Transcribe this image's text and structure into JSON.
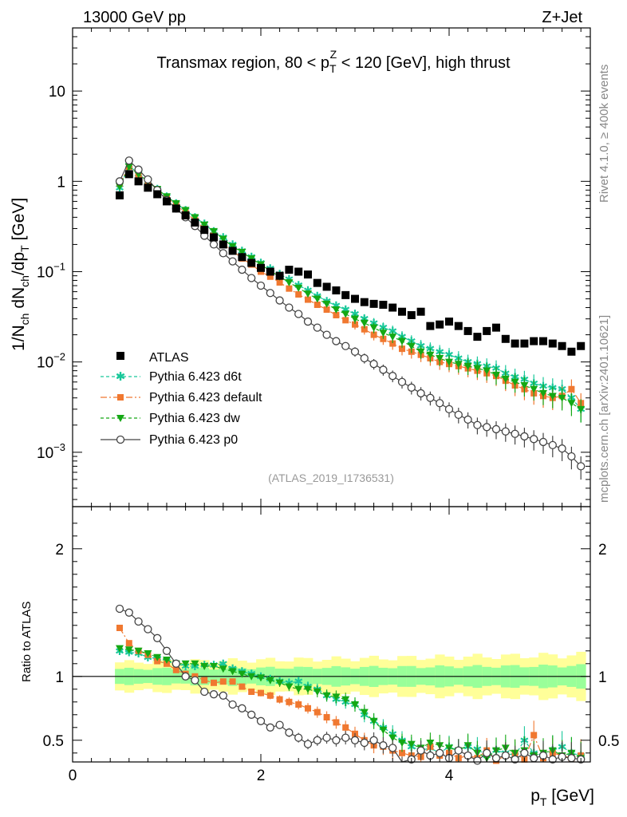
{
  "header": {
    "left": "13000 GeV pp",
    "right": "Z+Jet"
  },
  "side_text": {
    "top": "Rivet 4.1.0, ≥ 400k events",
    "bottom": "mcplots.cern.ch [arXiv:2401.10621]"
  },
  "colors": {
    "atlas": "#000000",
    "d6t": "#19c89a",
    "default": "#f07830",
    "dw": "#14a814",
    "p0": "#444444",
    "band_inner": "#99ff99",
    "band_outer": "#ffff99"
  },
  "chart_data": [
    {
      "type": "scatter",
      "title": "Transmax region, 80 < p_T^Z < 120 [GeV], high thrust",
      "title_parts": {
        "a": "Transmax region, 80 < p",
        "sub": "T",
        "sup": "Z",
        "b": " < 120 [GeV], high thrust"
      },
      "ylabel": "1/N_ch dN_ch/dp_T [GeV]",
      "ylabel_parts": {
        "a": "1/N",
        "s1": "ch",
        "b": " dN",
        "s2": "ch",
        "c": "/dp",
        "s3": "T",
        "d": " [GeV]"
      },
      "yscale": "log",
      "ylim": [
        0.00025,
        50
      ],
      "xlim": [
        0,
        5.5
      ],
      "ytick_labels": [
        {
          "value": 10,
          "base": "10",
          "exp": ""
        },
        {
          "value": 1,
          "base": "1",
          "exp": ""
        },
        {
          "value": 0.1,
          "base": "10",
          "exp": "−1"
        },
        {
          "value": 0.01,
          "base": "10",
          "exp": "−2"
        },
        {
          "value": 0.001,
          "base": "10",
          "exp": "−3"
        }
      ],
      "watermark": "(ATLAS_2019_I1736531)",
      "legend": [
        "ATLAS",
        "Pythia 6.423 d6t",
        "Pythia 6.423 default",
        "Pythia 6.423 dw",
        "Pythia 6.423 p0"
      ],
      "x": [
        0.5,
        0.6,
        0.7,
        0.8,
        0.9,
        1.0,
        1.1,
        1.2,
        1.3,
        1.4,
        1.5,
        1.6,
        1.7,
        1.8,
        1.9,
        2.0,
        2.1,
        2.2,
        2.3,
        2.4,
        2.5,
        2.6,
        2.7,
        2.8,
        2.9,
        3.0,
        3.1,
        3.2,
        3.3,
        3.4,
        3.5,
        3.6,
        3.7,
        3.8,
        3.9,
        4.0,
        4.1,
        4.2,
        4.3,
        4.4,
        4.5,
        4.6,
        4.7,
        4.8,
        4.9,
        5.0,
        5.1,
        5.2,
        5.3,
        5.4
      ],
      "series": [
        {
          "name": "ATLAS",
          "values": [
            0.7,
            1.2,
            1.0,
            0.85,
            0.72,
            0.6,
            0.5,
            0.42,
            0.35,
            0.29,
            0.24,
            0.2,
            0.17,
            0.145,
            0.125,
            0.11,
            0.1,
            0.09,
            0.105,
            0.1,
            0.093,
            0.075,
            0.068,
            0.062,
            0.055,
            0.05,
            0.046,
            0.044,
            0.043,
            0.04,
            0.036,
            0.033,
            0.036,
            0.025,
            0.026,
            0.028,
            0.025,
            0.022,
            0.019,
            0.022,
            0.024,
            0.018,
            0.016,
            0.016,
            0.017,
            0.017,
            0.016,
            0.015,
            0.013,
            0.015
          ]
        },
        {
          "name": "Pythia 6.423 d6t",
          "values": [
            0.85,
            1.5,
            1.2,
            1.0,
            0.82,
            0.68,
            0.57,
            0.48,
            0.4,
            0.34,
            0.28,
            0.24,
            0.2,
            0.17,
            0.145,
            0.125,
            0.108,
            0.094,
            0.082,
            0.071,
            0.062,
            0.054,
            0.047,
            0.042,
            0.038,
            0.034,
            0.03,
            0.027,
            0.024,
            0.022,
            0.019,
            0.017,
            0.015,
            0.014,
            0.013,
            0.012,
            0.011,
            0.01,
            0.0095,
            0.009,
            0.0085,
            0.0075,
            0.0068,
            0.0064,
            0.0058,
            0.0054,
            0.0052,
            0.005,
            0.004,
            0.003
          ]
        },
        {
          "name": "Pythia 6.423 default",
          "values": [
            0.95,
            1.45,
            1.2,
            0.98,
            0.8,
            0.66,
            0.55,
            0.45,
            0.37,
            0.3,
            0.25,
            0.2,
            0.17,
            0.14,
            0.12,
            0.1,
            0.088,
            0.076,
            0.065,
            0.056,
            0.049,
            0.043,
            0.038,
            0.033,
            0.029,
            0.026,
            0.023,
            0.02,
            0.018,
            0.016,
            0.014,
            0.013,
            0.012,
            0.011,
            0.01,
            0.0095,
            0.009,
            0.0085,
            0.008,
            0.0075,
            0.007,
            0.0062,
            0.0055,
            0.005,
            0.0045,
            0.0042,
            0.004,
            0.0042,
            0.005,
            0.0035
          ]
        },
        {
          "name": "Pythia 6.423 dw",
          "values": [
            0.88,
            1.45,
            1.2,
            1.0,
            0.82,
            0.68,
            0.57,
            0.48,
            0.4,
            0.33,
            0.28,
            0.23,
            0.19,
            0.165,
            0.14,
            0.12,
            0.102,
            0.088,
            0.076,
            0.066,
            0.057,
            0.05,
            0.044,
            0.038,
            0.034,
            0.03,
            0.027,
            0.024,
            0.021,
            0.019,
            0.017,
            0.015,
            0.013,
            0.012,
            0.011,
            0.01,
            0.0095,
            0.009,
            0.0085,
            0.008,
            0.0072,
            0.0065,
            0.006,
            0.0055,
            0.005,
            0.0045,
            0.0042,
            0.004,
            0.0035,
            0.003
          ]
        },
        {
          "name": "Pythia 6.423 p0",
          "values": [
            1.0,
            1.7,
            1.35,
            1.05,
            0.8,
            0.62,
            0.5,
            0.4,
            0.32,
            0.25,
            0.2,
            0.16,
            0.13,
            0.105,
            0.085,
            0.07,
            0.058,
            0.048,
            0.04,
            0.034,
            0.028,
            0.024,
            0.02,
            0.017,
            0.015,
            0.013,
            0.011,
            0.0095,
            0.0082,
            0.007,
            0.006,
            0.0052,
            0.0045,
            0.004,
            0.0035,
            0.003,
            0.0026,
            0.0023,
            0.002,
            0.0019,
            0.0018,
            0.0017,
            0.0016,
            0.0015,
            0.0014,
            0.0013,
            0.0012,
            0.0011,
            0.0009,
            0.0007
          ]
        }
      ]
    },
    {
      "type": "scatter",
      "ylabel": "Ratio to ATLAS",
      "xlabel": "p_T [GeV]",
      "xlabel_parts": {
        "a": "p",
        "sub": "T",
        "b": " [GeV]"
      },
      "xlim": [
        0,
        5.5
      ],
      "ylim": [
        0.33,
        2.33
      ],
      "xtick_labels": [
        "0",
        "2",
        "4"
      ],
      "xticks": [
        0,
        2,
        4
      ],
      "ytick_labels": [
        "0.5",
        "1",
        "2"
      ],
      "yticks": [
        0.5,
        1,
        2
      ],
      "band_inner_halfwidth": 0.07,
      "band_outer_halfwidth": 0.13,
      "x": [
        0.5,
        0.6,
        0.7,
        0.8,
        0.9,
        1.0,
        1.1,
        1.2,
        1.3,
        1.4,
        1.5,
        1.6,
        1.7,
        1.8,
        1.9,
        2.0,
        2.1,
        2.2,
        2.3,
        2.4,
        2.5,
        2.6,
        2.7,
        2.8,
        2.9,
        3.0,
        3.1,
        3.2,
        3.3,
        3.4,
        3.5,
        3.6,
        3.7,
        3.8,
        3.9,
        4.0,
        4.1,
        4.2,
        4.3,
        4.4,
        4.5,
        4.6,
        4.7,
        4.8,
        4.9,
        5.0,
        5.1,
        5.2,
        5.3,
        5.4
      ],
      "series": [
        {
          "name": "Pythia 6.423 d6t",
          "values": [
            1.2,
            1.19,
            1.18,
            1.15,
            1.14,
            1.12,
            1.1,
            1.08,
            1.08,
            1.09,
            1.09,
            1.1,
            1.06,
            1.04,
            1.02,
            1.0,
            0.98,
            0.96,
            0.95,
            0.96,
            0.92,
            0.9,
            0.85,
            0.82,
            0.8,
            0.78,
            0.7,
            0.65,
            0.6,
            0.55,
            0.5,
            0.45,
            0.42,
            0.44,
            0.4,
            0.45,
            0.42,
            0.45,
            0.43,
            0.38,
            0.42,
            0.4,
            0.38,
            0.5,
            0.4,
            0.38,
            0.42,
            0.45,
            0.4,
            0.38
          ]
        },
        {
          "name": "Pythia 6.423 default",
          "values": [
            1.38,
            1.26,
            1.2,
            1.17,
            1.12,
            1.1,
            1.05,
            1.02,
            1.0,
            0.97,
            0.95,
            0.96,
            0.96,
            0.92,
            0.88,
            0.87,
            0.85,
            0.82,
            0.8,
            0.78,
            0.75,
            0.72,
            0.68,
            0.64,
            0.6,
            0.55,
            0.5,
            0.46,
            0.45,
            0.42,
            0.4,
            0.38,
            0.37,
            0.45,
            0.38,
            0.4,
            0.36,
            0.38,
            0.36,
            0.42,
            0.34,
            0.38,
            0.4,
            0.35,
            0.54,
            0.36,
            0.4,
            0.38,
            0.36,
            0.38
          ]
        },
        {
          "name": "Pythia 6.423 dw",
          "values": [
            1.22,
            1.21,
            1.2,
            1.18,
            1.15,
            1.13,
            1.1,
            1.1,
            1.1,
            1.08,
            1.08,
            1.06,
            1.04,
            1.02,
            1.0,
            0.99,
            0.97,
            0.95,
            0.92,
            0.9,
            0.9,
            0.88,
            0.85,
            0.84,
            0.82,
            0.78,
            0.72,
            0.65,
            0.58,
            0.52,
            0.48,
            0.47,
            0.44,
            0.48,
            0.46,
            0.44,
            0.42,
            0.46,
            0.4,
            0.36,
            0.42,
            0.44,
            0.4,
            0.42,
            0.38,
            0.4,
            0.42,
            0.38,
            0.4,
            0.36
          ]
        },
        {
          "name": "Pythia 6.423 p0",
          "values": [
            1.53,
            1.5,
            1.43,
            1.37,
            1.3,
            1.2,
            1.1,
            1.0,
            0.97,
            0.88,
            0.86,
            0.85,
            0.78,
            0.75,
            0.7,
            0.65,
            0.6,
            0.62,
            0.56,
            0.52,
            0.47,
            0.5,
            0.52,
            0.5,
            0.52,
            0.5,
            0.48,
            0.5,
            0.46,
            0.44,
            0.3,
            0.35,
            0.42,
            0.38,
            0.4,
            0.36,
            0.42,
            0.38,
            0.34,
            0.4,
            0.36,
            0.38,
            0.35,
            0.4,
            0.36,
            0.38,
            0.35,
            0.37,
            0.36,
            0.35
          ]
        }
      ]
    }
  ]
}
